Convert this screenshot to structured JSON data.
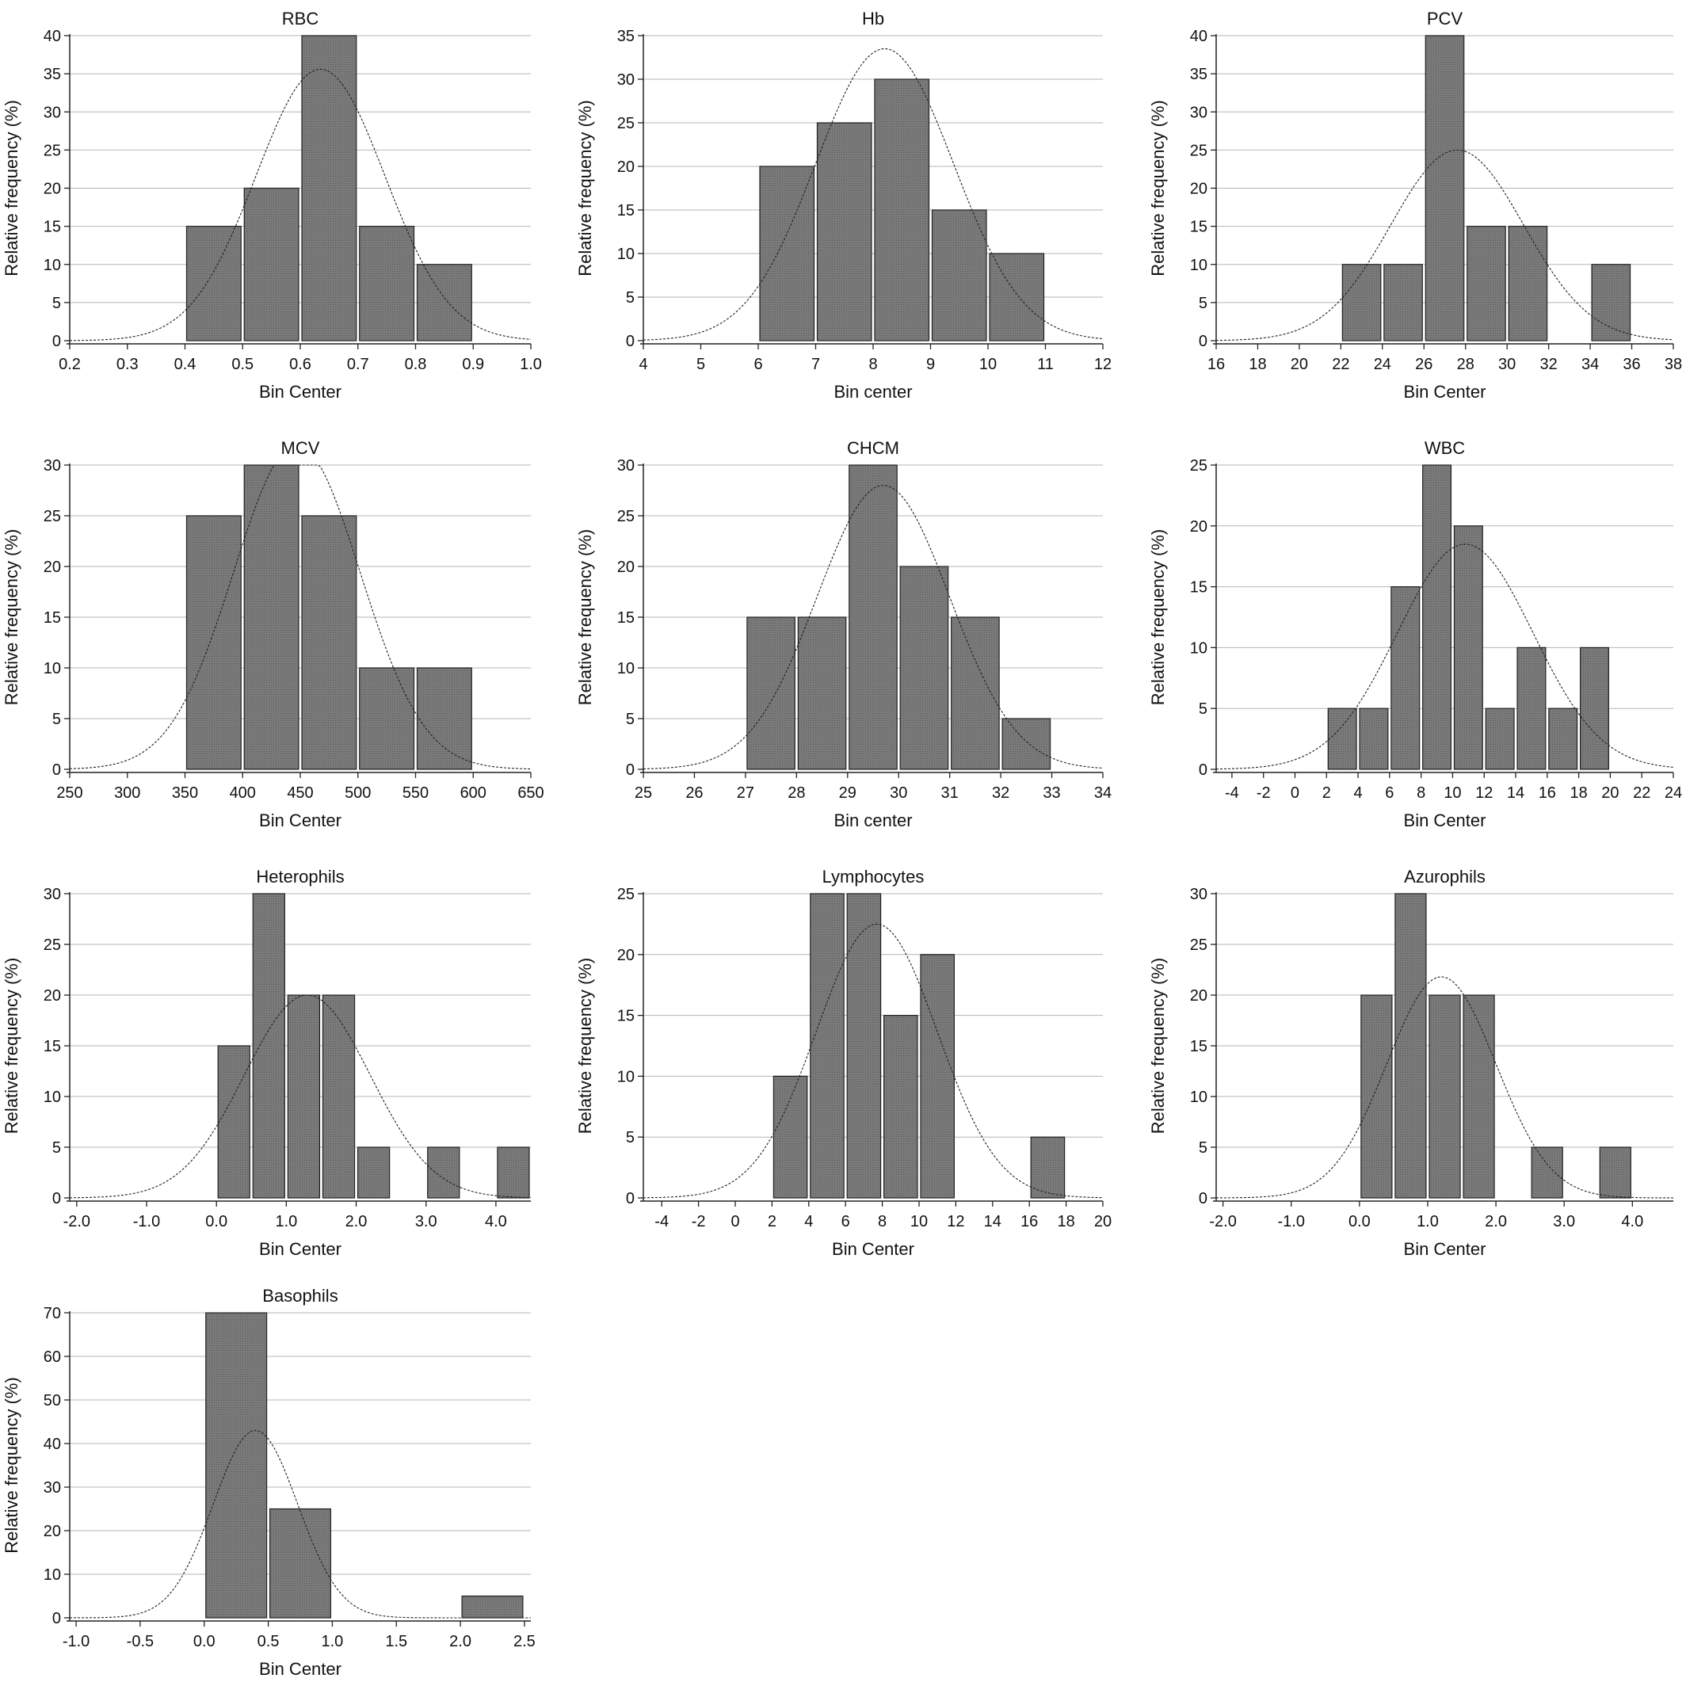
{
  "chart_data": [
    {
      "type": "bar",
      "title": "RBC",
      "xlabel": "Bin Center",
      "ylabel": "Relative frequency (%)",
      "xlim": [
        0.2,
        1.0
      ],
      "ylim": [
        0,
        40
      ],
      "xticks": [
        "0.2",
        "0.3",
        "0.4",
        "0.5",
        "0.6",
        "0.7",
        "0.8",
        "0.9",
        "1.0"
      ],
      "yticks": [
        "0",
        "5",
        "10",
        "15",
        "20",
        "25",
        "30",
        "35",
        "40"
      ],
      "bins": [
        [
          0.4,
          0.5,
          15
        ],
        [
          0.5,
          0.6,
          20
        ],
        [
          0.6,
          0.7,
          40
        ],
        [
          0.7,
          0.8,
          15
        ],
        [
          0.8,
          0.9,
          10
        ]
      ],
      "curve": {
        "peak": 35.6,
        "mean": 0.635,
        "sd": 0.112
      },
      "grid": true
    },
    {
      "type": "bar",
      "title": "Hb",
      "xlabel": "Bin center",
      "ylabel": "Relative frequency (%)",
      "xlim": [
        4,
        12
      ],
      "ylim": [
        0,
        35
      ],
      "xticks": [
        "4",
        "5",
        "6",
        "7",
        "8",
        "9",
        "10",
        "11",
        "12"
      ],
      "yticks": [
        "0",
        "5",
        "10",
        "15",
        "20",
        "25",
        "30",
        "35"
      ],
      "bins": [
        [
          6,
          7,
          20
        ],
        [
          7,
          8,
          25
        ],
        [
          8,
          9,
          30
        ],
        [
          9,
          10,
          15
        ],
        [
          10,
          11,
          10
        ]
      ],
      "curve": {
        "peak": 33.5,
        "mean": 8.2,
        "sd": 1.2
      },
      "grid": true
    },
    {
      "type": "bar",
      "title": "PCV",
      "xlabel": "Bin Center",
      "ylabel": "Relative frequency (%)",
      "xlim": [
        16,
        38
      ],
      "ylim": [
        0,
        40
      ],
      "xticks": [
        "16",
        "18",
        "20",
        "22",
        "24",
        "26",
        "28",
        "30",
        "32",
        "34",
        "36",
        "38"
      ],
      "yticks": [
        "0",
        "5",
        "10",
        "15",
        "20",
        "25",
        "30",
        "35",
        "40"
      ],
      "bins": [
        [
          22,
          24,
          10
        ],
        [
          24,
          26,
          10
        ],
        [
          26,
          28,
          40
        ],
        [
          28,
          30,
          15
        ],
        [
          30,
          32,
          15
        ],
        [
          34,
          36,
          10
        ]
      ],
      "curve": {
        "peak": 25,
        "mean": 27.6,
        "sd": 3.2
      },
      "grid": true
    },
    {
      "type": "bar",
      "title": "MCV",
      "xlabel": "Bin Center",
      "ylabel": "Relative frequency (%)",
      "xlim": [
        250,
        650
      ],
      "ylim": [
        0,
        30
      ],
      "xticks": [
        "250",
        "300",
        "350",
        "400",
        "450",
        "500",
        "550",
        "600",
        "650"
      ],
      "yticks": [
        "0",
        "5",
        "10",
        "15",
        "20",
        "25",
        "30"
      ],
      "bins": [
        [
          350,
          400,
          25
        ],
        [
          400,
          450,
          30
        ],
        [
          450,
          500,
          25
        ],
        [
          500,
          550,
          10
        ],
        [
          550,
          600,
          10
        ]
      ],
      "curve": {
        "peak": 32,
        "mean": 447,
        "sd": 55
      },
      "grid": true
    },
    {
      "type": "bar",
      "title": "CHCM",
      "xlabel": "Bin center",
      "ylabel": "Relative frequency (%)",
      "xlim": [
        25,
        34
      ],
      "ylim": [
        0,
        30
      ],
      "xticks": [
        "25",
        "26",
        "27",
        "28",
        "29",
        "30",
        "31",
        "32",
        "33",
        "34"
      ],
      "yticks": [
        "0",
        "5",
        "10",
        "15",
        "20",
        "25",
        "30"
      ],
      "bins": [
        [
          27,
          28,
          15
        ],
        [
          28,
          29,
          15
        ],
        [
          29,
          30,
          30
        ],
        [
          30,
          31,
          20
        ],
        [
          31,
          32,
          15
        ],
        [
          32,
          33,
          5
        ]
      ],
      "curve": {
        "peak": 28,
        "mean": 29.7,
        "sd": 1.3
      },
      "grid": true
    },
    {
      "type": "bar",
      "title": "WBC",
      "xlabel": "Bin Center",
      "ylabel": "Relative frequency (%)",
      "xlim": [
        -5,
        24
      ],
      "ylim": [
        0,
        25
      ],
      "xticks": [
        "-4",
        "-2",
        "0",
        "2",
        "4",
        "6",
        "8",
        "10",
        "12",
        "14",
        "16",
        "18",
        "20",
        "22",
        "24"
      ],
      "yticks": [
        "0",
        "5",
        "10",
        "15",
        "20",
        "25"
      ],
      "bins": [
        [
          2,
          4,
          5
        ],
        [
          4,
          6,
          5
        ],
        [
          6,
          8,
          15
        ],
        [
          8,
          10,
          25
        ],
        [
          10,
          12,
          20
        ],
        [
          12,
          14,
          5
        ],
        [
          14,
          16,
          10
        ],
        [
          16,
          18,
          5
        ],
        [
          18,
          20,
          10
        ]
      ],
      "curve": {
        "peak": 18.5,
        "mean": 10.8,
        "sd": 4.3
      },
      "grid": true
    },
    {
      "type": "bar",
      "title": "Heterophils",
      "xlabel": "Bin Center",
      "ylabel": "Relative frequency (%)",
      "xlim": [
        -2.1,
        4.5
      ],
      "ylim": [
        0,
        30
      ],
      "xticks": [
        "-2.0",
        "-1.0",
        "0.0",
        "1.0",
        "2.0",
        "3.0",
        "4.0"
      ],
      "yticks": [
        "0",
        "5",
        "10",
        "15",
        "20",
        "25",
        "30"
      ],
      "bins": [
        [
          0.0,
          0.5,
          15
        ],
        [
          0.5,
          1.0,
          30
        ],
        [
          1.0,
          1.5,
          20
        ],
        [
          1.5,
          2.0,
          20
        ],
        [
          2.0,
          2.5,
          5
        ],
        [
          3.0,
          3.5,
          5
        ],
        [
          4.0,
          4.5,
          5
        ]
      ],
      "curve": {
        "peak": 20,
        "mean": 1.3,
        "sd": 0.9
      },
      "grid": true
    },
    {
      "type": "bar",
      "title": "Lymphocytes",
      "xlabel": "Bin Center",
      "ylabel": "Relative frequency (%)",
      "xlim": [
        -5,
        20
      ],
      "ylim": [
        0,
        25
      ],
      "xticks": [
        "-4",
        "-2",
        "0",
        "2",
        "4",
        "6",
        "8",
        "10",
        "12",
        "14",
        "16",
        "18",
        "20"
      ],
      "yticks": [
        "0",
        "5",
        "10",
        "15",
        "20",
        "25"
      ],
      "bins": [
        [
          2,
          4,
          10
        ],
        [
          4,
          6,
          25
        ],
        [
          6,
          8,
          25
        ],
        [
          8,
          10,
          15
        ],
        [
          10,
          12,
          20
        ],
        [
          16,
          18,
          5
        ]
      ],
      "curve": {
        "peak": 22.5,
        "mean": 7.7,
        "sd": 3.3
      },
      "grid": true
    },
    {
      "type": "bar",
      "title": "Azurophils",
      "xlabel": "Bin Center",
      "ylabel": "Relative frequency (%)",
      "xlim": [
        -2.1,
        4.6
      ],
      "ylim": [
        0,
        30
      ],
      "xticks": [
        "-2.0",
        "-1.0",
        "0.0",
        "1.0",
        "2.0",
        "3.0",
        "4.0"
      ],
      "yticks": [
        "0",
        "5",
        "10",
        "15",
        "20",
        "25",
        "30"
      ],
      "bins": [
        [
          0.0,
          0.5,
          20
        ],
        [
          0.5,
          1.0,
          30
        ],
        [
          1.0,
          1.5,
          20
        ],
        [
          1.5,
          2.0,
          20
        ],
        [
          2.5,
          3.0,
          5
        ],
        [
          3.5,
          4.0,
          5
        ]
      ],
      "curve": {
        "peak": 21.8,
        "mean": 1.2,
        "sd": 0.8
      },
      "grid": true
    },
    {
      "type": "bar",
      "title": "Basophils",
      "xlabel": "Bin Center",
      "ylabel": "Relative frequency (%)",
      "xlim": [
        -1.05,
        2.55
      ],
      "ylim": [
        0,
        70
      ],
      "xticks": [
        "-1.0",
        "-0.5",
        "0.0",
        "0.5",
        "1.0",
        "1.5",
        "2.0",
        "2.5"
      ],
      "yticks": [
        "0",
        "10",
        "20",
        "30",
        "40",
        "50",
        "60",
        "70"
      ],
      "bins": [
        [
          0.0,
          0.5,
          70
        ],
        [
          0.5,
          1.0,
          25
        ],
        [
          2.0,
          2.5,
          5
        ]
      ],
      "curve": {
        "peak": 43,
        "mean": 0.4,
        "sd": 0.33
      },
      "grid": true
    }
  ]
}
